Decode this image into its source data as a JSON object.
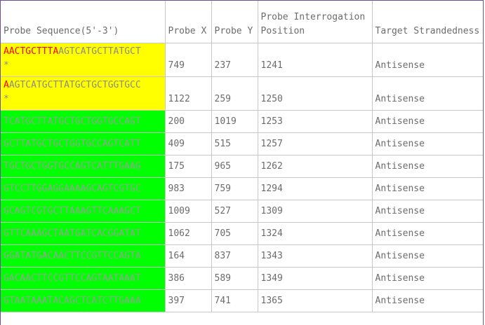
{
  "table": {
    "headers": [
      "Probe Sequence(5'-3')",
      "Probe X",
      "Probe Y",
      "Probe Interrogation Position",
      "Target Strandedness"
    ],
    "rows": [
      {
        "seq_highlight": "AACTGCTTTA",
        "seq_rest": "AGTCATGCTTATGCT",
        "seq_suffix": "*",
        "x": "749",
        "y": "237",
        "position": "1241",
        "strand": "Antisense",
        "status": "yellow"
      },
      {
        "seq_highlight": "A",
        "seq_rest": "AGTCATGCTTATGCTGCTGGTGCC",
        "seq_suffix": "*",
        "x": "1122",
        "y": "259",
        "position": "1250",
        "strand": "Antisense",
        "status": "yellow"
      },
      {
        "seq_highlight": "",
        "seq_rest": "TCATGCTTATGCTGCTGGTGCCAGT",
        "seq_suffix": "",
        "x": "200",
        "y": "1019",
        "position": "1253",
        "strand": "Antisense",
        "status": "green"
      },
      {
        "seq_highlight": "",
        "seq_rest": "GCTTATGCTGCTGGTGCCAGTCATT",
        "seq_suffix": "",
        "x": "409",
        "y": "515",
        "position": "1257",
        "strand": "Antisense",
        "status": "green"
      },
      {
        "seq_highlight": "",
        "seq_rest": "TGCTGCTGGTGCCAGTCATTTGAAG",
        "seq_suffix": "",
        "x": "175",
        "y": "965",
        "position": "1262",
        "strand": "Antisense",
        "status": "green"
      },
      {
        "seq_highlight": "",
        "seq_rest": "GTCCTTGGAGGAAAAGCAGTCGTGC",
        "seq_suffix": "",
        "x": "983",
        "y": "759",
        "position": "1294",
        "strand": "Antisense",
        "status": "green"
      },
      {
        "seq_highlight": "",
        "seq_rest": "GCAGTCGTGCTTAAAGTTCAAAGCT",
        "seq_suffix": "",
        "x": "1009",
        "y": "527",
        "position": "1309",
        "strand": "Antisense",
        "status": "green"
      },
      {
        "seq_highlight": "",
        "seq_rest": "GTTCAAAGCTAATGATCACGGATAT",
        "seq_suffix": "",
        "x": "1062",
        "y": "705",
        "position": "1324",
        "strand": "Antisense",
        "status": "green"
      },
      {
        "seq_highlight": "",
        "seq_rest": "GGATATGACAACTTCCGTTCCAGTA",
        "seq_suffix": "",
        "x": "164",
        "y": "837",
        "position": "1343",
        "strand": "Antisense",
        "status": "green"
      },
      {
        "seq_highlight": "",
        "seq_rest": "GACAACTTCCGTTCCAGTAATAAAT",
        "seq_suffix": "",
        "x": "386",
        "y": "589",
        "position": "1349",
        "strand": "Antisense",
        "status": "green"
      },
      {
        "seq_highlight": "",
        "seq_rest": "GTAATAAATACAGCTCATCTTGAAA",
        "seq_suffix": "",
        "x": "397",
        "y": "741",
        "position": "1365",
        "strand": "Antisense",
        "status": "green"
      }
    ],
    "colors": {
      "yellow": "#ffff00",
      "green": "#00ff00",
      "highlight": "#ff0000"
    }
  }
}
